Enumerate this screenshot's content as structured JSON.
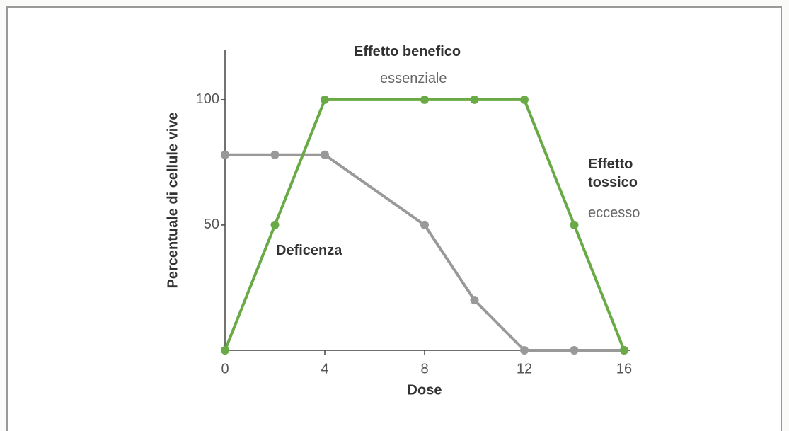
{
  "chart_data": {
    "type": "line",
    "x_label": "Dose",
    "y_label": "Percentuale di cellule vive",
    "annotations": [
      "Effetto benefico",
      "essenziale",
      "Effetto tossico",
      "eccesso",
      "Deficenza"
    ],
    "x": [
      0,
      2,
      4,
      8,
      10,
      12,
      14,
      16
    ],
    "series": [
      {
        "color": "#6aaa46",
        "values": [
          0,
          50,
          100,
          100,
          100,
          100,
          50,
          0
        ]
      },
      {
        "color": "#999999",
        "values": [
          78,
          78,
          78,
          50,
          20,
          0,
          0,
          0
        ]
      }
    ],
    "xlim": [
      0,
      16
    ],
    "xticks": [
      0,
      4,
      8,
      12,
      16
    ],
    "ylim": [
      0,
      120
    ],
    "yticks": [
      50,
      100
    ]
  }
}
